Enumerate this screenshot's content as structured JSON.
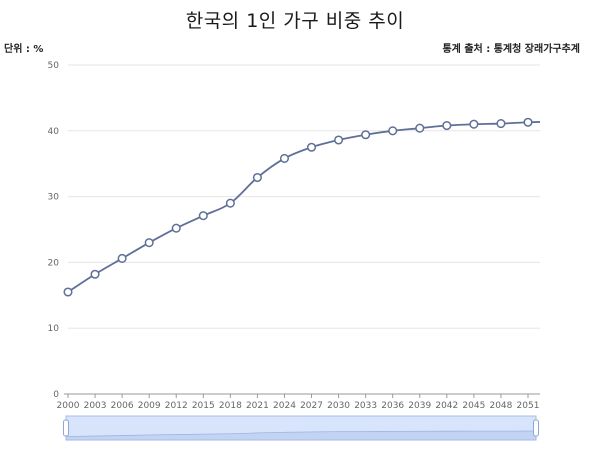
{
  "header": {
    "title": "한국의 1인 가구 비중 추이",
    "unit_label": "단위 : %",
    "source_label": "통계 출처 : 통계청 장래가구추계"
  },
  "colors": {
    "line": "#5f6f98",
    "marker_fill": "#ffffff",
    "grid": "#e6e6e6",
    "axis": "#999999",
    "slider_fill": "#d8e4fb",
    "slider_border": "#a9bde6"
  },
  "chart_data": {
    "type": "line",
    "title": "한국의 1인 가구 비중 추이",
    "xlabel": "",
    "ylabel": "",
    "unit": "%",
    "x": [
      "2000",
      "2003",
      "2006",
      "2009",
      "2012",
      "2015",
      "2018",
      "2021",
      "2024",
      "2027",
      "2030",
      "2033",
      "2036",
      "2039",
      "2042",
      "2045",
      "2048",
      "2051"
    ],
    "yticks": [
      "0",
      "10",
      "20",
      "30",
      "40",
      "50"
    ],
    "ylim": [
      0,
      50
    ],
    "series": [
      {
        "values": [
          15.5,
          18.2,
          20.6,
          23.0,
          25.2,
          27.1,
          29.0,
          32.9,
          35.8,
          37.5,
          38.6,
          39.4,
          40.0,
          40.4,
          40.8,
          41.0,
          41.1,
          41.3
        ]
      }
    ],
    "grid": true,
    "legend": "none",
    "data_zoom_slider": true
  }
}
